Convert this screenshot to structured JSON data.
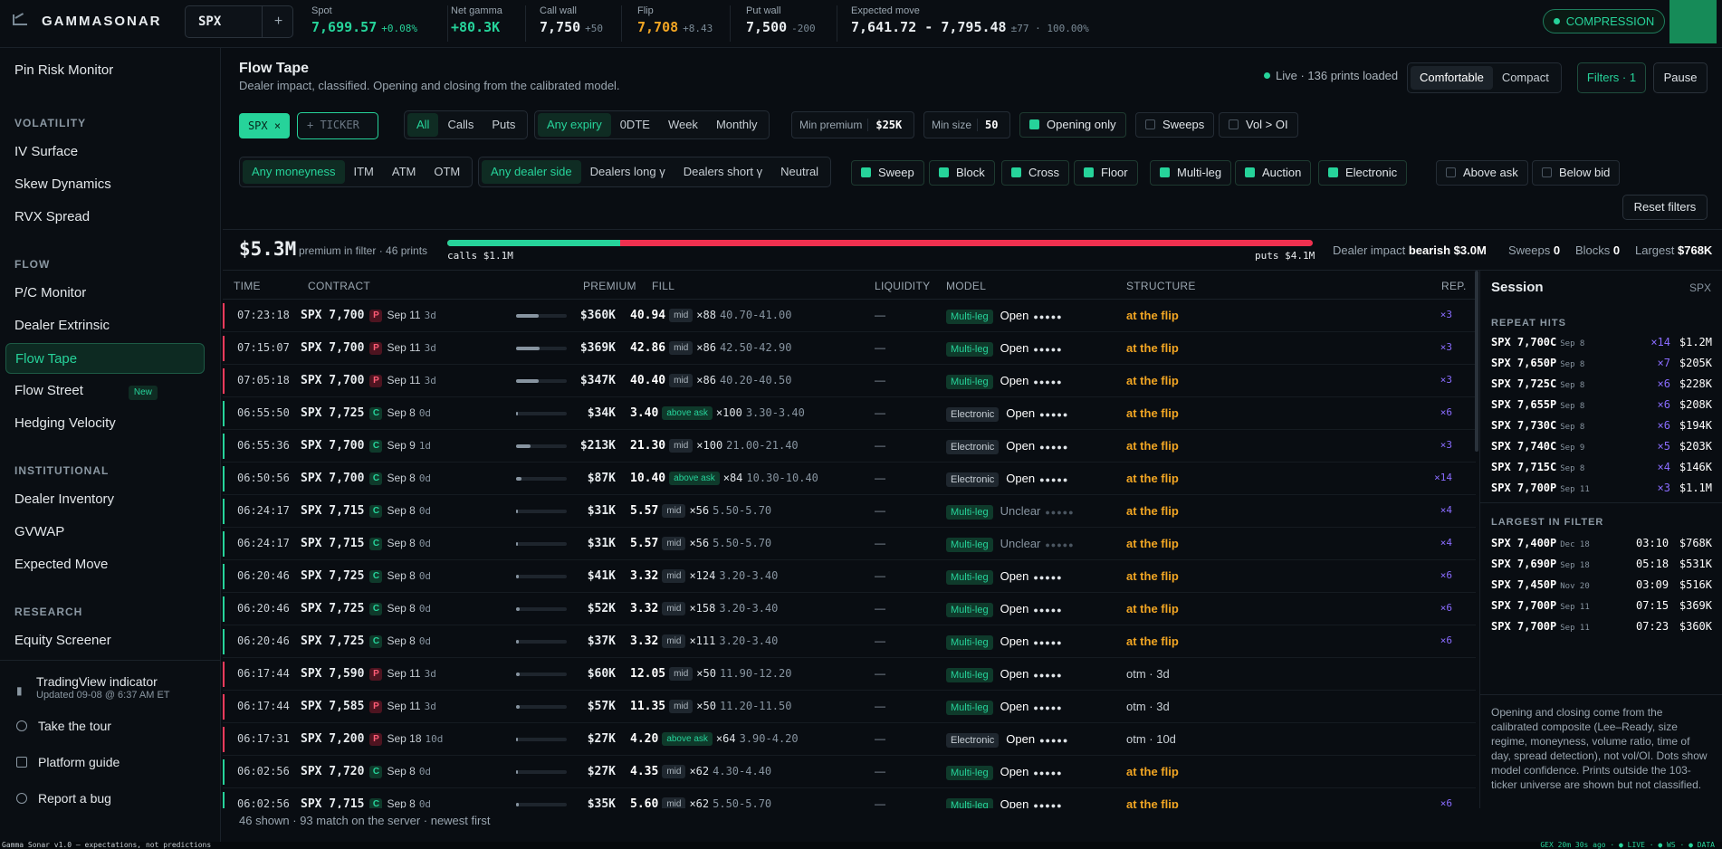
{
  "brand": "GAMMASONAR",
  "ticker": "SPX",
  "stats": [
    {
      "label": "Spot",
      "value": "7,699.57",
      "sub": "+0.08%",
      "color": "green"
    },
    {
      "label": "Net gamma",
      "value": "+80.3K",
      "sub": "",
      "color": "green"
    },
    {
      "label": "Call wall",
      "value": "7,750",
      "sub": "+50",
      "color": ""
    },
    {
      "label": "Flip",
      "value": "7,708",
      "sub": "+8.43",
      "color": "orange"
    },
    {
      "label": "Put wall",
      "value": "7,500",
      "sub": "-200",
      "color": ""
    },
    {
      "label": "Expected move",
      "value": "7,641.72 - 7,795.48",
      "sub": "±77 · 100.00%",
      "color": ""
    }
  ],
  "regime": "COMPRESSION",
  "sidebar": {
    "top": "Pin Risk Monitor",
    "sections": [
      {
        "title": "VOLATILITY",
        "items": [
          "IV Surface",
          "Skew Dynamics",
          "RVX Spread"
        ]
      },
      {
        "title": "FLOW",
        "items": [
          "P/C Monitor",
          "Dealer Extrinsic",
          "Flow Tape",
          "Flow Street",
          "Hedging Velocity"
        ]
      },
      {
        "title": "INSTITUTIONAL",
        "items": [
          "Dealer Inventory",
          "GVWAP",
          "Expected Move"
        ]
      },
      {
        "title": "RESEARCH",
        "items": [
          "Equity Screener"
        ]
      }
    ],
    "new_badge": "New",
    "tv_title": "TradingView indicator",
    "tv_sub": "Updated 09-08 @ 6:37 AM ET",
    "tour": "Take the tour",
    "guide": "Platform guide",
    "bug": "Report a bug"
  },
  "page": {
    "title": "Flow Tape",
    "subtitle": "Dealer impact, classified. Opening and closing from the calibrated model.",
    "live": "Live · 136 prints loaded",
    "density": [
      "Comfortable",
      "Compact"
    ],
    "filters_btn": "Filters · 1",
    "pause": "Pause"
  },
  "filters": {
    "spx_pill": "SPX ×",
    "ticker_placeholder": "+ TICKER",
    "type": [
      "All",
      "Calls",
      "Puts"
    ],
    "expiry": [
      "Any expiry",
      "0DTE",
      "Week",
      "Monthly"
    ],
    "min_premium_label": "Min premium",
    "min_premium": "$25K",
    "min_size_label": "Min size",
    "min_size": "50",
    "opening_only": "Opening only",
    "sweeps": "Sweeps",
    "vol_oi": "Vol > OI",
    "moneyness": [
      "Any moneyness",
      "ITM",
      "ATM",
      "OTM"
    ],
    "dealer": [
      "Any dealer side",
      "Dealers long γ",
      "Dealers short γ",
      "Neutral"
    ],
    "kinds": [
      "Sweep",
      "Block",
      "Cross",
      "Floor",
      "Multi-leg",
      "Auction",
      "Electronic"
    ],
    "above_ask": "Above ask",
    "below_bid": "Below bid",
    "reset": "Reset filters"
  },
  "summary": {
    "premium": "$5.3M",
    "premium_sub": "premium in filter · 46 prints",
    "calls": "calls $1.1M",
    "puts": "puts $4.1M",
    "call_share": 0.2,
    "impact_label": "Dealer impact",
    "impact": "bearish $3.0M",
    "sweeps_label": "Sweeps",
    "sweeps": "0",
    "blocks_label": "Blocks",
    "blocks": "0",
    "largest_label": "Largest",
    "largest": "$768K"
  },
  "columns": [
    "TIME",
    "CONTRACT",
    "PREMIUM",
    "FILL",
    "LIQUIDITY",
    "MODEL",
    "STRUCTURE",
    "REP."
  ],
  "rows": [
    {
      "time": "07:23:18",
      "strike": "SPX 7,700",
      "pc": "P",
      "date": "Sep 11",
      "dte": "3d",
      "bar": 0.45,
      "premium": "$360K",
      "price": "40.94",
      "tag": "mid",
      "size": "×88",
      "range": "40.70-41.00",
      "liq": "—",
      "model": "Multi-leg",
      "oc": "Open",
      "dots": "●●●●●",
      "structure": "at the flip",
      "rep": "×3"
    },
    {
      "time": "07:15:07",
      "strike": "SPX 7,700",
      "pc": "P",
      "date": "Sep 11",
      "dte": "3d",
      "bar": 0.46,
      "premium": "$369K",
      "price": "42.86",
      "tag": "mid",
      "size": "×86",
      "range": "42.50-42.90",
      "liq": "—",
      "model": "Multi-leg",
      "oc": "Open",
      "dots": "●●●●●",
      "structure": "at the flip",
      "rep": "×3"
    },
    {
      "time": "07:05:18",
      "strike": "SPX 7,700",
      "pc": "P",
      "date": "Sep 11",
      "dte": "3d",
      "bar": 0.44,
      "premium": "$347K",
      "price": "40.40",
      "tag": "mid",
      "size": "×86",
      "range": "40.20-40.50",
      "liq": "—",
      "model": "Multi-leg",
      "oc": "Open",
      "dots": "●●●●●",
      "structure": "at the flip",
      "rep": "×3"
    },
    {
      "time": "06:55:50",
      "strike": "SPX 7,725",
      "pc": "C",
      "date": "Sep 8",
      "dte": "0d",
      "bar": 0.04,
      "premium": "$34K",
      "price": "3.40",
      "tag": "above ask",
      "size": "×100",
      "range": "3.30-3.40",
      "liq": "—",
      "model": "Electronic",
      "oc": "Open",
      "dots": "●●●●●",
      "structure": "at the flip",
      "rep": "×6"
    },
    {
      "time": "06:55:36",
      "strike": "SPX 7,700",
      "pc": "C",
      "date": "Sep 9",
      "dte": "1d",
      "bar": 0.28,
      "premium": "$213K",
      "price": "21.30",
      "tag": "mid",
      "size": "×100",
      "range": "21.00-21.40",
      "liq": "—",
      "model": "Electronic",
      "oc": "Open",
      "dots": "●●●●●",
      "structure": "at the flip",
      "rep": "×3"
    },
    {
      "time": "06:50:56",
      "strike": "SPX 7,700",
      "pc": "C",
      "date": "Sep 8",
      "dte": "0d",
      "bar": 0.11,
      "premium": "$87K",
      "price": "10.40",
      "tag": "above ask",
      "size": "×84",
      "range": "10.30-10.40",
      "liq": "—",
      "model": "Electronic",
      "oc": "Open",
      "dots": "●●●●●",
      "structure": "at the flip",
      "rep": "×14"
    },
    {
      "time": "06:24:17",
      "strike": "SPX 7,715",
      "pc": "C",
      "date": "Sep 8",
      "dte": "0d",
      "bar": 0.04,
      "premium": "$31K",
      "price": "5.57",
      "tag": "mid",
      "size": "×56",
      "range": "5.50-5.70",
      "liq": "—",
      "model": "Multi-leg",
      "oc": "Unclear",
      "dots": "●●●●●",
      "structure": "at the flip",
      "rep": "×4"
    },
    {
      "time": "06:24:17",
      "strike": "SPX 7,715",
      "pc": "C",
      "date": "Sep 8",
      "dte": "0d",
      "bar": 0.04,
      "premium": "$31K",
      "price": "5.57",
      "tag": "mid",
      "size": "×56",
      "range": "5.50-5.70",
      "liq": "—",
      "model": "Multi-leg",
      "oc": "Unclear",
      "dots": "●●●●●",
      "structure": "at the flip",
      "rep": "×4"
    },
    {
      "time": "06:20:46",
      "strike": "SPX 7,725",
      "pc": "C",
      "date": "Sep 8",
      "dte": "0d",
      "bar": 0.05,
      "premium": "$41K",
      "price": "3.32",
      "tag": "mid",
      "size": "×124",
      "range": "3.20-3.40",
      "liq": "—",
      "model": "Multi-leg",
      "oc": "Open",
      "dots": "●●●●●",
      "structure": "at the flip",
      "rep": "×6"
    },
    {
      "time": "06:20:46",
      "strike": "SPX 7,725",
      "pc": "C",
      "date": "Sep 8",
      "dte": "0d",
      "bar": 0.07,
      "premium": "$52K",
      "price": "3.32",
      "tag": "mid",
      "size": "×158",
      "range": "3.20-3.40",
      "liq": "—",
      "model": "Multi-leg",
      "oc": "Open",
      "dots": "●●●●●",
      "structure": "at the flip",
      "rep": "×6"
    },
    {
      "time": "06:20:46",
      "strike": "SPX 7,725",
      "pc": "C",
      "date": "Sep 8",
      "dte": "0d",
      "bar": 0.05,
      "premium": "$37K",
      "price": "3.32",
      "tag": "mid",
      "size": "×111",
      "range": "3.20-3.40",
      "liq": "—",
      "model": "Multi-leg",
      "oc": "Open",
      "dots": "●●●●●",
      "structure": "at the flip",
      "rep": "×6"
    },
    {
      "time": "06:17:44",
      "strike": "SPX 7,590",
      "pc": "P",
      "date": "Sep 11",
      "dte": "3d",
      "bar": 0.08,
      "premium": "$60K",
      "price": "12.05",
      "tag": "mid",
      "size": "×50",
      "range": "11.90-12.20",
      "liq": "—",
      "model": "Multi-leg",
      "oc": "Open",
      "dots": "●●●●●",
      "structure": "otm · 3d",
      "rep": ""
    },
    {
      "time": "06:17:44",
      "strike": "SPX 7,585",
      "pc": "P",
      "date": "Sep 11",
      "dte": "3d",
      "bar": 0.07,
      "premium": "$57K",
      "price": "11.35",
      "tag": "mid",
      "size": "×50",
      "range": "11.20-11.50",
      "liq": "—",
      "model": "Multi-leg",
      "oc": "Open",
      "dots": "●●●●●",
      "structure": "otm · 3d",
      "rep": ""
    },
    {
      "time": "06:17:31",
      "strike": "SPX 7,200",
      "pc": "P",
      "date": "Sep 18",
      "dte": "10d",
      "bar": 0.04,
      "premium": "$27K",
      "price": "4.20",
      "tag": "above ask",
      "size": "×64",
      "range": "3.90-4.20",
      "liq": "—",
      "model": "Electronic",
      "oc": "Open",
      "dots": "●●●●●",
      "structure": "otm · 10d",
      "rep": ""
    },
    {
      "time": "06:02:56",
      "strike": "SPX 7,720",
      "pc": "C",
      "date": "Sep 8",
      "dte": "0d",
      "bar": 0.04,
      "premium": "$27K",
      "price": "4.35",
      "tag": "mid",
      "size": "×62",
      "range": "4.30-4.40",
      "liq": "—",
      "model": "Multi-leg",
      "oc": "Open",
      "dots": "●●●●●",
      "structure": "at the flip",
      "rep": ""
    },
    {
      "time": "06:02:56",
      "strike": "SPX 7,715",
      "pc": "C",
      "date": "Sep 8",
      "dte": "0d",
      "bar": 0.05,
      "premium": "$35K",
      "price": "5.60",
      "tag": "mid",
      "size": "×62",
      "range": "5.50-5.70",
      "liq": "—",
      "model": "Multi-leg",
      "oc": "Open",
      "dots": "●●●●●",
      "structure": "at the flip",
      "rep": "×6"
    }
  ],
  "footer": "46 shown · 93 match on the server · newest first",
  "session": {
    "title": "Session",
    "ticker": "SPX",
    "repeat_title": "REPEAT HITS",
    "repeat": [
      {
        "k": "SPX 7,700C",
        "d": "Sep 8",
        "x": "×14",
        "v": "$1.2M"
      },
      {
        "k": "SPX 7,650P",
        "d": "Sep 8",
        "x": "×7",
        "v": "$205K"
      },
      {
        "k": "SPX 7,725C",
        "d": "Sep 8",
        "x": "×6",
        "v": "$228K"
      },
      {
        "k": "SPX 7,655P",
        "d": "Sep 8",
        "x": "×6",
        "v": "$208K"
      },
      {
        "k": "SPX 7,730C",
        "d": "Sep 8",
        "x": "×6",
        "v": "$194K"
      },
      {
        "k": "SPX 7,740C",
        "d": "Sep 9",
        "x": "×5",
        "v": "$203K"
      },
      {
        "k": "SPX 7,715C",
        "d": "Sep 8",
        "x": "×4",
        "v": "$146K"
      },
      {
        "k": "SPX 7,700P",
        "d": "Sep 11",
        "x": "×3",
        "v": "$1.1M"
      }
    ],
    "largest_title": "LARGEST IN FILTER",
    "largest": [
      {
        "k": "SPX 7,400P",
        "d": "Dec 18",
        "t": "03:10",
        "v": "$768K"
      },
      {
        "k": "SPX 7,690P",
        "d": "Sep 18",
        "t": "05:18",
        "v": "$531K"
      },
      {
        "k": "SPX 7,450P",
        "d": "Nov 20",
        "t": "03:09",
        "v": "$516K"
      },
      {
        "k": "SPX 7,700P",
        "d": "Sep 11",
        "t": "07:15",
        "v": "$369K"
      },
      {
        "k": "SPX 7,700P",
        "d": "Sep 11",
        "t": "07:23",
        "v": "$360K"
      }
    ],
    "note": "Opening and closing come from the calibrated composite (Lee–Ready, size regime, moneyness, volume ratio, time of day, spread detection), not vol/OI. Dots show model confidence. Prints outside the 103-ticker universe are shown but not classified."
  },
  "status": {
    "left": "Gamma Sonar v1.0 — expectations, not predictions",
    "right": "GEX 20m 30s ago · ● LIVE · ● WS · ● DATA"
  }
}
